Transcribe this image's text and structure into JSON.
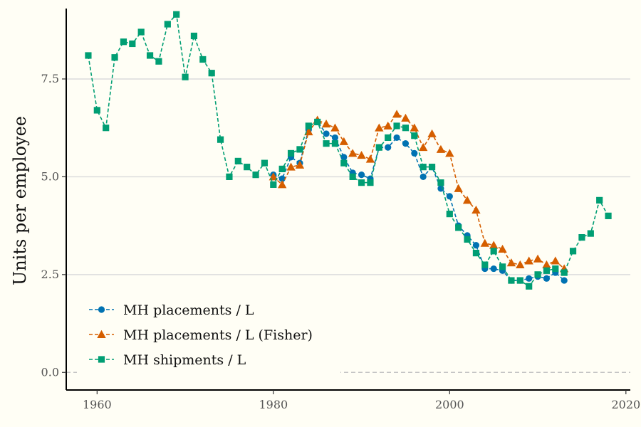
{
  "chart_data": {
    "type": "line",
    "title": "",
    "xlabel": "",
    "ylabel": "Units per employee",
    "xlim": [
      1956.5,
      2020.5
    ],
    "ylim": [
      -0.45,
      9.3
    ],
    "x_ticks": [
      1960,
      1980,
      2000,
      2020
    ],
    "x_tick_labels": [
      "1960",
      "1980",
      "2000",
      "2020"
    ],
    "y_ticks": [
      0,
      2.5,
      5,
      7.5
    ],
    "y_tick_labels": [
      "0.0",
      "2.5",
      "5.0",
      "7.5"
    ],
    "reference_line_y": 0,
    "legend_position": "bottom-left",
    "series": [
      {
        "name": "MH placements / L",
        "color": "#0072b2",
        "marker": "circle",
        "x": [
          1980,
          1981,
          1982,
          1983,
          1984,
          1985,
          1986,
          1987,
          1988,
          1989,
          1990,
          1991,
          1992,
          1993,
          1994,
          1995,
          1996,
          1997,
          1998,
          1999,
          2000,
          2001,
          2002,
          2003,
          2004,
          2005,
          2006,
          2007,
          2008,
          2009,
          2010,
          2011,
          2012,
          2013
        ],
        "y": [
          5.05,
          4.95,
          5.5,
          5.35,
          6.2,
          6.4,
          6.1,
          6.0,
          5.5,
          5.1,
          5.05,
          4.95,
          5.75,
          5.75,
          6.0,
          5.85,
          5.6,
          5.0,
          5.25,
          4.7,
          4.5,
          3.75,
          3.5,
          3.25,
          2.65,
          2.65,
          2.6,
          2.35,
          2.35,
          2.4,
          2.45,
          2.4,
          2.55,
          2.35
        ]
      },
      {
        "name": "MH placements / L (Fisher)",
        "color": "#d55e00",
        "marker": "triangle",
        "x": [
          1980,
          1981,
          1982,
          1983,
          1984,
          1985,
          1986,
          1987,
          1988,
          1989,
          1990,
          1991,
          1992,
          1993,
          1994,
          1995,
          1996,
          1997,
          1998,
          1999,
          2000,
          2001,
          2002,
          2003,
          2004,
          2005,
          2006,
          2007,
          2008,
          2009,
          2010,
          2011,
          2012,
          2013
        ],
        "y": [
          5.0,
          4.8,
          5.25,
          5.3,
          6.15,
          6.45,
          6.35,
          6.25,
          5.9,
          5.6,
          5.55,
          5.45,
          6.25,
          6.3,
          6.6,
          6.5,
          6.25,
          5.75,
          6.1,
          5.7,
          5.6,
          4.7,
          4.4,
          4.15,
          3.3,
          3.25,
          3.15,
          2.8,
          2.75,
          2.85,
          2.9,
          2.75,
          2.85,
          2.65
        ]
      },
      {
        "name": "MH shipments / L",
        "color": "#009e73",
        "marker": "square",
        "x": [
          1959,
          1960,
          1961,
          1962,
          1963,
          1964,
          1965,
          1966,
          1967,
          1968,
          1969,
          1970,
          1971,
          1972,
          1973,
          1974,
          1975,
          1976,
          1977,
          1978,
          1979,
          1980,
          1981,
          1982,
          1983,
          1984,
          1985,
          1986,
          1987,
          1988,
          1989,
          1990,
          1991,
          1992,
          1993,
          1994,
          1995,
          1996,
          1997,
          1998,
          1999,
          2000,
          2001,
          2002,
          2003,
          2004,
          2005,
          2006,
          2007,
          2008,
          2009,
          2010,
          2011,
          2012,
          2013,
          2014,
          2015,
          2016,
          2017,
          2018
        ],
        "y": [
          8.1,
          6.7,
          6.25,
          8.05,
          8.45,
          8.4,
          8.7,
          8.1,
          7.95,
          8.9,
          9.15,
          7.55,
          8.6,
          8.0,
          7.65,
          5.95,
          5.0,
          5.4,
          5.25,
          5.05,
          5.35,
          4.8,
          5.2,
          5.6,
          5.7,
          6.3,
          6.4,
          5.85,
          5.85,
          5.35,
          5.0,
          4.85,
          4.85,
          5.75,
          6.0,
          6.3,
          6.25,
          6.05,
          5.25,
          5.25,
          4.85,
          4.05,
          3.7,
          3.4,
          3.05,
          2.75,
          3.1,
          2.7,
          2.35,
          2.35,
          2.2,
          2.5,
          2.6,
          2.65,
          2.55,
          3.1,
          3.45,
          3.55,
          4.4,
          4.0
        ]
      }
    ]
  }
}
